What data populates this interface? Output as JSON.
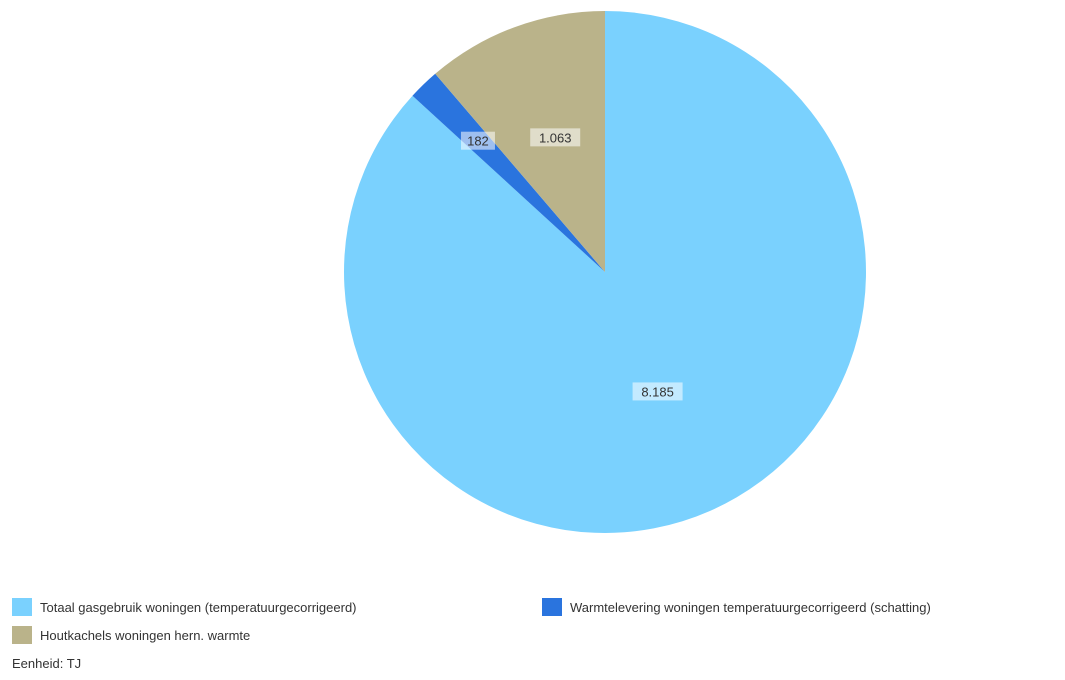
{
  "chart_data": {
    "type": "pie",
    "slices": [
      {
        "name": "Totaal gasgebruik woningen (temperatuurgecorrigeerd)",
        "value": 8185,
        "label": "8.185",
        "color": "#7ad1fe"
      },
      {
        "name": "Warmtelevering woningen temperatuurgecorrigeerd (schatting)",
        "value": 182,
        "label": "182",
        "color": "#2a74de"
      },
      {
        "name": "Houtkachels woningen hern. warmte",
        "value": 1063,
        "label": "1.063",
        "color": "#bab38a"
      }
    ],
    "legend": {
      "placement": "bottom",
      "items": [
        "Totaal gasgebruik woningen (temperatuurgecorrigeerd)",
        "Warmtelevering woningen temperatuurgecorrigeerd (schatting)",
        "Houtkachels woningen hern. warmte"
      ]
    },
    "unit_label": "Eenheid: TJ"
  }
}
